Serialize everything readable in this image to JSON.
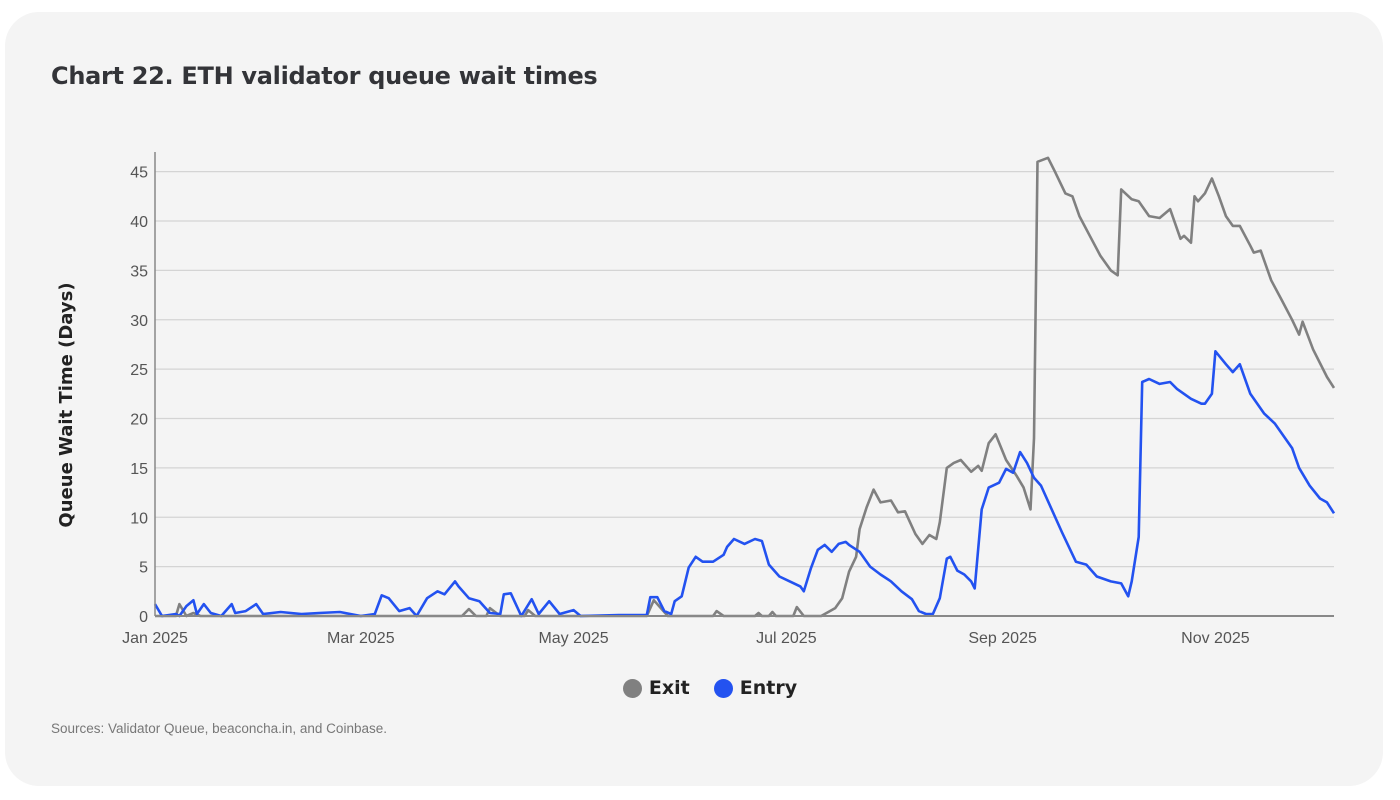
{
  "chart_data": {
    "type": "line",
    "title": "Chart 22.  ETH validator queue wait times",
    "xlabel": "",
    "ylabel": "Queue Wait Time (Days)",
    "x_unit": "days since 2025-01-01",
    "xlim": [
      0,
      338
    ],
    "ylim": [
      0,
      48
    ],
    "yticks": [
      0,
      5,
      10,
      15,
      20,
      25,
      30,
      35,
      40,
      45
    ],
    "xticks": [
      {
        "value": 0,
        "label": "Jan 2025"
      },
      {
        "value": 59,
        "label": "Mar 2025"
      },
      {
        "value": 120,
        "label": "May 2025"
      },
      {
        "value": 181,
        "label": "Jul 2025"
      },
      {
        "value": 243,
        "label": "Sep 2025"
      },
      {
        "value": 304,
        "label": "Nov 2025"
      }
    ],
    "grid": "horizontal",
    "legend_position": "bottom-center",
    "series": [
      {
        "name": "Exit",
        "color": "#808080",
        "points": [
          [
            0,
            0
          ],
          [
            6,
            0
          ],
          [
            7,
            1.2
          ],
          [
            9,
            0
          ],
          [
            11,
            0.3
          ],
          [
            13,
            0
          ],
          [
            88,
            0
          ],
          [
            90,
            0.7
          ],
          [
            92,
            0
          ],
          [
            95,
            0
          ],
          [
            96,
            0.8
          ],
          [
            99,
            0
          ],
          [
            106,
            0
          ],
          [
            107,
            0.6
          ],
          [
            109,
            0
          ],
          [
            141,
            0
          ],
          [
            143,
            1.6
          ],
          [
            147,
            0
          ],
          [
            160,
            0
          ],
          [
            161,
            0.5
          ],
          [
            163,
            0
          ],
          [
            172,
            0
          ],
          [
            173,
            0.3
          ],
          [
            174,
            0
          ],
          [
            176,
            0
          ],
          [
            177,
            0.4
          ],
          [
            178,
            0
          ],
          [
            183,
            0
          ],
          [
            184,
            0.9
          ],
          [
            186,
            0
          ],
          [
            191,
            0
          ],
          [
            195,
            0.8
          ],
          [
            197,
            1.8
          ],
          [
            199,
            4.5
          ],
          [
            201,
            6
          ],
          [
            202,
            8.8
          ],
          [
            204,
            11
          ],
          [
            206,
            12.8
          ],
          [
            208,
            11.5
          ],
          [
            211,
            11.7
          ],
          [
            213,
            10.5
          ],
          [
            215,
            10.6
          ],
          [
            218,
            8.3
          ],
          [
            220,
            7.3
          ],
          [
            222,
            8.2
          ],
          [
            224,
            7.8
          ],
          [
            225,
            9.5
          ],
          [
            227,
            15
          ],
          [
            229,
            15.5
          ],
          [
            231,
            15.8
          ],
          [
            234,
            14.6
          ],
          [
            236,
            15.2
          ],
          [
            237,
            14.7
          ],
          [
            239,
            17.5
          ],
          [
            241,
            18.4
          ],
          [
            244,
            15.8
          ],
          [
            247,
            14.2
          ],
          [
            249,
            13
          ],
          [
            251,
            10.8
          ],
          [
            252,
            18
          ],
          [
            253,
            46.0
          ],
          [
            256,
            46.4
          ],
          [
            258,
            45
          ],
          [
            261,
            42.8
          ],
          [
            263,
            42.5
          ],
          [
            265,
            40.5
          ],
          [
            268,
            38.5
          ],
          [
            271,
            36.5
          ],
          [
            274,
            35
          ],
          [
            276,
            34.5
          ],
          [
            277,
            43.2
          ],
          [
            280,
            42.2
          ],
          [
            282,
            42
          ],
          [
            284,
            41
          ],
          [
            285,
            40.5
          ],
          [
            288,
            40.3
          ],
          [
            291,
            41.2
          ],
          [
            294,
            38.2
          ],
          [
            295,
            38.5
          ],
          [
            297,
            37.8
          ],
          [
            298,
            42.5
          ],
          [
            299,
            42
          ],
          [
            301,
            42.8
          ],
          [
            303,
            44.3
          ],
          [
            305,
            42.5
          ],
          [
            307,
            40.5
          ],
          [
            309,
            39.5
          ],
          [
            311,
            39.5
          ],
          [
            314,
            37.5
          ],
          [
            315,
            36.8
          ],
          [
            317,
            37
          ],
          [
            320,
            34
          ],
          [
            323,
            32
          ],
          [
            326,
            30
          ],
          [
            328,
            28.5
          ],
          [
            329,
            29.8
          ],
          [
            332,
            27
          ],
          [
            336,
            24.2
          ],
          [
            338,
            23.1
          ]
        ]
      },
      {
        "name": "Entry",
        "color": "#2352f0",
        "points": [
          [
            0,
            1.2
          ],
          [
            2,
            0
          ],
          [
            6,
            0.2
          ],
          [
            7,
            0
          ],
          [
            9,
            1
          ],
          [
            11,
            1.6
          ],
          [
            12,
            0.2
          ],
          [
            14,
            1.2
          ],
          [
            16,
            0.3
          ],
          [
            19,
            0
          ],
          [
            22,
            1.2
          ],
          [
            23,
            0.3
          ],
          [
            26,
            0.5
          ],
          [
            29,
            1.2
          ],
          [
            31,
            0.2
          ],
          [
            36,
            0.4
          ],
          [
            42,
            0.2
          ],
          [
            47,
            0.3
          ],
          [
            53,
            0.4
          ],
          [
            59,
            0
          ],
          [
            63,
            0.2
          ],
          [
            65,
            2.1
          ],
          [
            67,
            1.8
          ],
          [
            70,
            0.5
          ],
          [
            73,
            0.8
          ],
          [
            75,
            0
          ],
          [
            78,
            1.8
          ],
          [
            81,
            2.5
          ],
          [
            83,
            2.2
          ],
          [
            86,
            3.5
          ],
          [
            87,
            3.0
          ],
          [
            90,
            1.8
          ],
          [
            93,
            1.5
          ],
          [
            96,
            0.3
          ],
          [
            99,
            0.2
          ],
          [
            100,
            2.2
          ],
          [
            102,
            2.3
          ],
          [
            105,
            0
          ],
          [
            108,
            1.7
          ],
          [
            110,
            0.2
          ],
          [
            113,
            1.5
          ],
          [
            116,
            0.2
          ],
          [
            120,
            0.6
          ],
          [
            122,
            0
          ],
          [
            133,
            0.1
          ],
          [
            141,
            0.1
          ],
          [
            142,
            1.9
          ],
          [
            144,
            1.9
          ],
          [
            146,
            0.5
          ],
          [
            148,
            0.2
          ],
          [
            149,
            1.5
          ],
          [
            151,
            2.0
          ],
          [
            153,
            4.9
          ],
          [
            155,
            6.0
          ],
          [
            157,
            5.5
          ],
          [
            160,
            5.5
          ],
          [
            163,
            6.2
          ],
          [
            164,
            7.0
          ],
          [
            166,
            7.8
          ],
          [
            169,
            7.3
          ],
          [
            172,
            7.8
          ],
          [
            174,
            7.6
          ],
          [
            176,
            5.2
          ],
          [
            179,
            4.0
          ],
          [
            182,
            3.5
          ],
          [
            185,
            3.0
          ],
          [
            186,
            2.5
          ],
          [
            188,
            4.8
          ],
          [
            190,
            6.7
          ],
          [
            192,
            7.2
          ],
          [
            194,
            6.5
          ],
          [
            196,
            7.3
          ],
          [
            198,
            7.5
          ],
          [
            199,
            7.2
          ],
          [
            202,
            6.5
          ],
          [
            205,
            5.0
          ],
          [
            208,
            4.2
          ],
          [
            211,
            3.5
          ],
          [
            214,
            2.5
          ],
          [
            217,
            1.7
          ],
          [
            219,
            0.5
          ],
          [
            221,
            0.2
          ],
          [
            223,
            0.2
          ],
          [
            225,
            1.8
          ],
          [
            227,
            5.8
          ],
          [
            228,
            6.0
          ],
          [
            230,
            4.6
          ],
          [
            232,
            4.2
          ],
          [
            234,
            3.5
          ],
          [
            235,
            2.8
          ],
          [
            237,
            10.8
          ],
          [
            239,
            13.0
          ],
          [
            242,
            13.5
          ],
          [
            244,
            14.9
          ],
          [
            246,
            14.5
          ],
          [
            248,
            16.6
          ],
          [
            250,
            15.5
          ],
          [
            252,
            14.0
          ],
          [
            254,
            13.2
          ],
          [
            260,
            8.5
          ],
          [
            264,
            5.5
          ],
          [
            267,
            5.2
          ],
          [
            270,
            4.0
          ],
          [
            274,
            3.5
          ],
          [
            277,
            3.3
          ],
          [
            279,
            2.0
          ],
          [
            280,
            3.5
          ],
          [
            282,
            8
          ],
          [
            283,
            23.7
          ],
          [
            285,
            24.0
          ],
          [
            288,
            23.5
          ],
          [
            291,
            23.7
          ],
          [
            293,
            23.0
          ],
          [
            297,
            22
          ],
          [
            300,
            21.5
          ],
          [
            301,
            21.5
          ],
          [
            303,
            22.5
          ],
          [
            304,
            26.8
          ],
          [
            307,
            25.5
          ],
          [
            309,
            24.7
          ],
          [
            311,
            25.5
          ],
          [
            314,
            22.5
          ],
          [
            318,
            20.5
          ],
          [
            321,
            19.5
          ],
          [
            326,
            17.0
          ],
          [
            328,
            15.0
          ],
          [
            331,
            13.2
          ],
          [
            334,
            11.9
          ],
          [
            336,
            11.5
          ],
          [
            338,
            10.4
          ]
        ]
      }
    ],
    "source": "Sources: Validator Queue, beaconcha.in, and Coinbase."
  }
}
